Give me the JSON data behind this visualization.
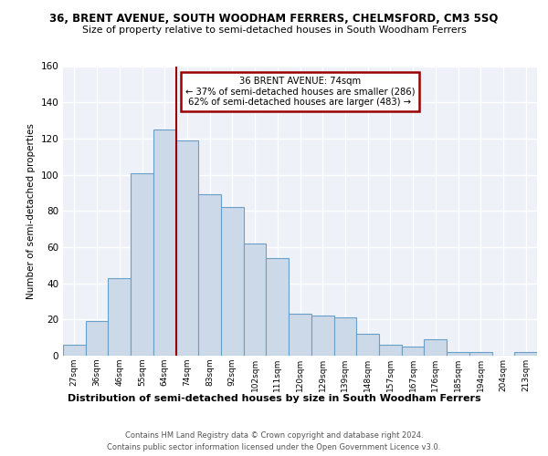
{
  "title1": "36, BRENT AVENUE, SOUTH WOODHAM FERRERS, CHELMSFORD, CM3 5SQ",
  "title2": "Size of property relative to semi-detached houses in South Woodham Ferrers",
  "xlabel": "Distribution of semi-detached houses by size in South Woodham Ferrers",
  "ylabel": "Number of semi-detached properties",
  "footer1": "Contains HM Land Registry data © Crown copyright and database right 2024.",
  "footer2": "Contains public sector information licensed under the Open Government Licence v3.0.",
  "bar_labels": [
    "27sqm",
    "36sqm",
    "46sqm",
    "55sqm",
    "64sqm",
    "74sqm",
    "83sqm",
    "92sqm",
    "102sqm",
    "111sqm",
    "120sqm",
    "129sqm",
    "139sqm",
    "148sqm",
    "157sqm",
    "167sqm",
    "176sqm",
    "185sqm",
    "194sqm",
    "204sqm",
    "213sqm"
  ],
  "bar_values": [
    6,
    19,
    43,
    101,
    125,
    119,
    89,
    82,
    62,
    54,
    23,
    22,
    21,
    12,
    6,
    5,
    9,
    2,
    2,
    0,
    2
  ],
  "property_label": "36 BRENT AVENUE: 74sqm",
  "pct_smaller": 37,
  "pct_larger": 62,
  "n_smaller": 286,
  "n_larger": 483,
  "bar_color": "#ccd9e8",
  "bar_edge_color": "#6aa0c8",
  "vline_color": "#990000",
  "annotation_box_color": "#990000",
  "bg_color": "#eef2f8",
  "ylim": [
    0,
    160
  ],
  "yticks": [
    0,
    20,
    40,
    60,
    80,
    100,
    120,
    140,
    160
  ],
  "vline_bin_index": 5
}
